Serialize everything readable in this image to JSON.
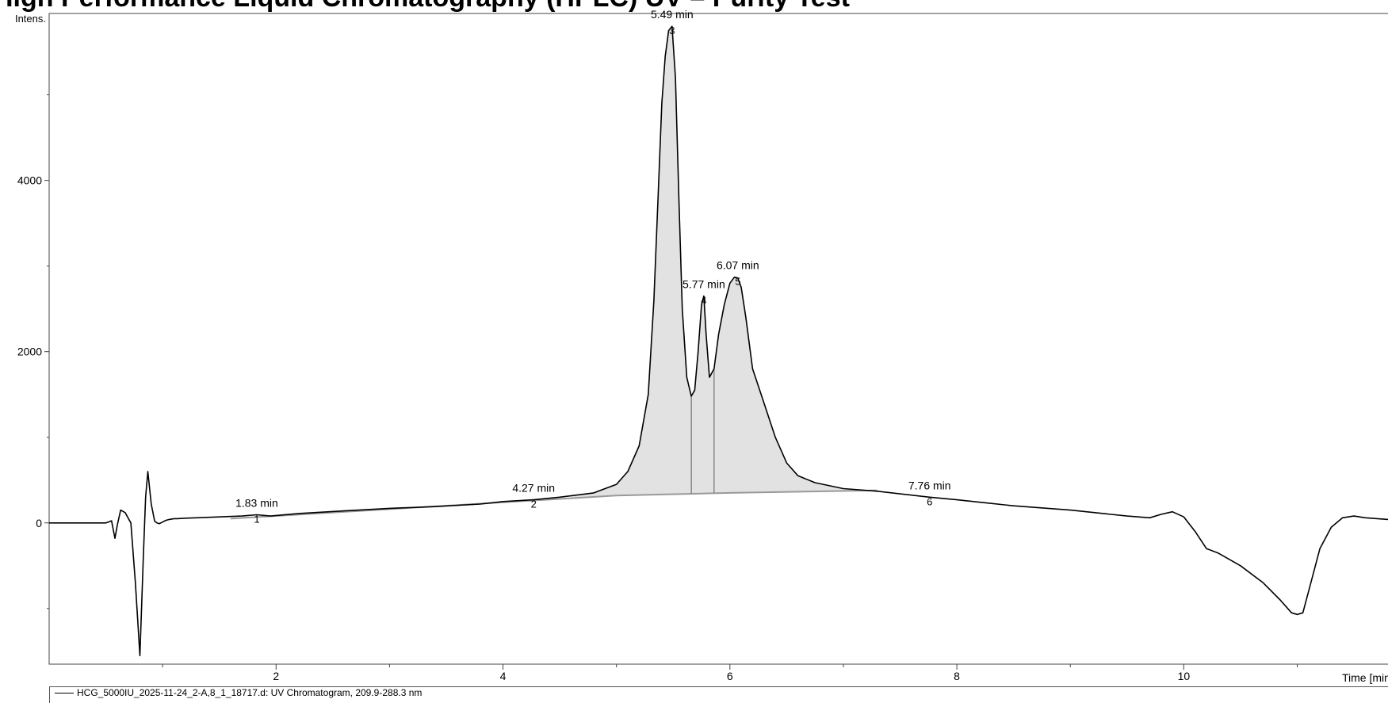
{
  "title": "High Performance Liquid Chromatography (HPLC) UV – Purity Test",
  "chart_data": {
    "type": "line",
    "ylabel": "Intens.",
    "xlabel": "Time [min]",
    "xlim": [
      0.0,
      11.8
    ],
    "ylim": [
      -1650,
      5950
    ],
    "x_ticks": [
      2,
      4,
      6,
      8,
      10
    ],
    "y_ticks": [
      0,
      2000,
      4000
    ],
    "grid": false,
    "series": [
      {
        "name": "HCG_5000IU_2025-11-24_2-A,8_1_18717.d: UV Chromatogram, 209.9-288.3 nm",
        "x": [
          0.0,
          0.5,
          0.52,
          0.55,
          0.58,
          0.6,
          0.63,
          0.67,
          0.72,
          0.76,
          0.8,
          0.83,
          0.85,
          0.87,
          0.9,
          0.93,
          0.95,
          0.97,
          1.0,
          1.03,
          1.06,
          1.1,
          1.13,
          1.2,
          1.3,
          1.5,
          1.7,
          1.83,
          1.95,
          2.2,
          2.6,
          3.0,
          3.4,
          3.8,
          4.0,
          4.27,
          4.5,
          4.8,
          5.0,
          5.1,
          5.2,
          5.28,
          5.33,
          5.37,
          5.4,
          5.43,
          5.46,
          5.49,
          5.52,
          5.55,
          5.58,
          5.62,
          5.66,
          5.69,
          5.72,
          5.75,
          5.77,
          5.79,
          5.82,
          5.86,
          5.9,
          5.95,
          6.0,
          6.04,
          6.07,
          6.1,
          6.14,
          6.2,
          6.3,
          6.4,
          6.5,
          6.6,
          6.75,
          7.0,
          7.3,
          7.76,
          8.0,
          8.5,
          9.0,
          9.5,
          9.7,
          9.8,
          9.9,
          10.0,
          10.1,
          10.2,
          10.3,
          10.5,
          10.7,
          10.85,
          10.95,
          11.0,
          11.05,
          11.1,
          11.2,
          11.3,
          11.4,
          11.5,
          11.6,
          11.8
        ],
        "y": [
          0,
          0,
          10,
          25,
          -180,
          -30,
          150,
          120,
          0,
          -700,
          -1550,
          -400,
          300,
          600,
          220,
          20,
          0,
          -10,
          10,
          30,
          40,
          50,
          50,
          55,
          60,
          70,
          80,
          95,
          80,
          110,
          140,
          170,
          190,
          220,
          250,
          270,
          300,
          350,
          450,
          600,
          900,
          1500,
          2600,
          3900,
          4900,
          5450,
          5750,
          5800,
          5200,
          3800,
          2500,
          1700,
          1480,
          1550,
          2000,
          2550,
          2650,
          2200,
          1700,
          1800,
          2200,
          2550,
          2800,
          2870,
          2860,
          2750,
          2400,
          1800,
          1400,
          1000,
          700,
          550,
          470,
          400,
          370,
          300,
          270,
          200,
          150,
          80,
          60,
          100,
          130,
          70,
          -100,
          -300,
          -350,
          -500,
          -700,
          -900,
          -1050,
          -1070,
          -1050,
          -800,
          -300,
          -50,
          60,
          80,
          60,
          40
        ]
      }
    ],
    "baseline": {
      "x": [
        1.6,
        4.0,
        5.0,
        6.0,
        7.3
      ],
      "y": [
        50,
        240,
        320,
        350,
        380
      ]
    },
    "peaks": [
      {
        "label": "1.83 min",
        "number": "1",
        "x": 1.83,
        "y": 95
      },
      {
        "label": "4.27 min",
        "number": "2",
        "x": 4.27,
        "y": 270
      },
      {
        "label": "5.49 min",
        "number": "3",
        "x": 5.49,
        "y": 5800
      },
      {
        "label": "5.77 min",
        "number": "4",
        "x": 5.77,
        "y": 2650
      },
      {
        "label": "6.07 min",
        "number": "5",
        "x": 6.07,
        "y": 2870
      },
      {
        "label": "7.76 min",
        "number": "6",
        "x": 7.76,
        "y": 300
      }
    ],
    "peak_splits": [
      5.66,
      5.86
    ],
    "integration_range": [
      4.6,
      7.3
    ],
    "colors": {
      "trace": "#000000",
      "fill": "#e2e2e2",
      "baseline": "#999999"
    },
    "legend_position": "bottom"
  }
}
